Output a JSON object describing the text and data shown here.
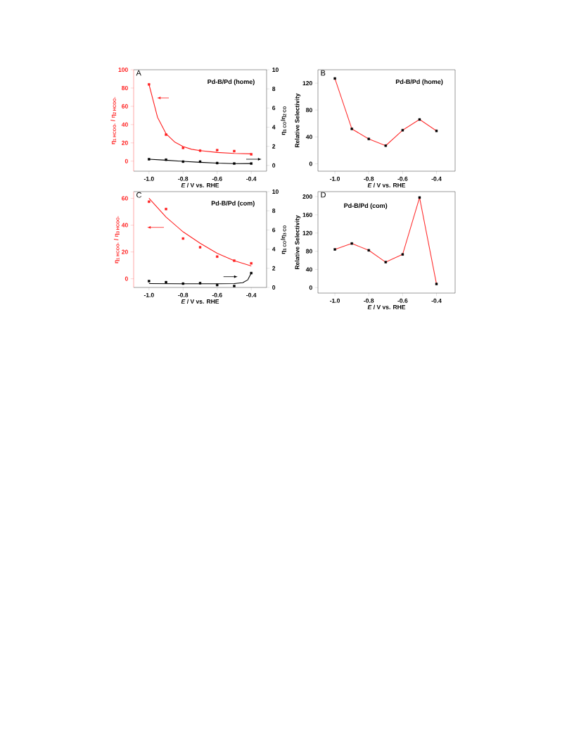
{
  "chart_data": [
    {
      "type": "scatter",
      "title": "Pd-B/Pd (home)",
      "annotations": [
        "A"
      ],
      "xlabel": "*E* / V vs. RHE",
      "ylabel": "η$_{1 HCOO-}$ / η$_{2 HCOO-}$",
      "y2label": "η$_{1 CO}$/η$_{2 CO}$",
      "x": [
        -1.0,
        -0.9,
        -0.8,
        -0.7,
        -0.6,
        -0.5,
        -0.4
      ],
      "xlim": [
        -1.09,
        -0.31
      ],
      "xticks": [
        {
          "value": -1.0,
          "label": "-1.0"
        },
        {
          "value": -0.8,
          "label": "-0.8"
        },
        {
          "value": -0.6,
          "label": "-0.6"
        },
        {
          "value": -0.4,
          "label": "-0.4"
        }
      ],
      "ylim": [
        -11,
        100
      ],
      "yticks": [
        0,
        20,
        40,
        60,
        80,
        100
      ],
      "y2lim": [
        -0.6,
        10
      ],
      "y2ticks": [
        0,
        2,
        4,
        6,
        8,
        10
      ],
      "marker": "square",
      "series": [
        {
          "type": "scatter",
          "color": "#ff1f1f",
          "values": [
            84,
            29,
            14.5,
            11.5,
            12,
            11,
            7.5
          ]
        },
        {
          "type": "line",
          "color": "#ff1f1f",
          "marker": "none",
          "x": [
            -1.0,
            -0.95,
            -0.9,
            -0.85,
            -0.8,
            -0.75,
            -0.7,
            -0.6,
            -0.5,
            -0.4
          ],
          "values": [
            84,
            48,
            30,
            21,
            16,
            13,
            11.5,
            9.5,
            8.5,
            8
          ]
        },
        {
          "type": "scatter",
          "axis": "y2",
          "color": "#000000",
          "values": [
            0.65,
            0.6,
            0.4,
            0.4,
            0.25,
            0.2,
            0.2
          ]
        },
        {
          "type": "line",
          "axis": "y2",
          "color": "#000000",
          "marker": "none",
          "x": [
            -1.0,
            -0.9,
            -0.8,
            -0.7,
            -0.6,
            -0.5,
            -0.4
          ],
          "values": [
            0.65,
            0.55,
            0.43,
            0.33,
            0.24,
            0.19,
            0.2
          ]
        }
      ]
    },
    {
      "type": "line",
      "title": "Pd-B/Pd (home)",
      "annotations": [
        "B"
      ],
      "xlabel": "*E* / V vs. RHE",
      "ylabel": "Relative Selectivity",
      "x": [
        -1.0,
        -0.9,
        -0.8,
        -0.7,
        -0.6,
        -0.5,
        -0.4
      ],
      "xlim": [
        -1.1,
        -0.29
      ],
      "xticks": [
        {
          "value": -1.0,
          "label": "-1.0"
        },
        {
          "value": -0.8,
          "label": "-0.8"
        },
        {
          "value": -0.6,
          "label": "-0.6"
        },
        {
          "value": -0.4,
          "label": "-0.4"
        }
      ],
      "ylim": [
        -11,
        140
      ],
      "yticks": [
        0,
        40,
        80,
        120
      ],
      "marker": "square",
      "series": [
        {
          "color": "#ff3030",
          "colors": [
            "#000000",
            "#000000",
            "#000000",
            "#000000",
            "#000000",
            "#000000",
            "#000000"
          ],
          "values": [
            127,
            52,
            37,
            27,
            50,
            66,
            49
          ]
        }
      ]
    },
    {
      "type": "scatter",
      "title": "Pd-B/Pd (com)",
      "annotations": [
        "C"
      ],
      "xlabel": "*E* / V vs. RHE",
      "ylabel": "η$_{1 HCOO-}$ / η$_{3 HCOO-}$",
      "y2label": "η$_{1 CO}$/η$_{3 CO}$",
      "x": [
        -1.0,
        -0.9,
        -0.8,
        -0.7,
        -0.6,
        -0.5,
        -0.4
      ],
      "xlim": [
        -1.09,
        -0.31
      ],
      "xticks": [
        {
          "value": -1.0,
          "label": "-1.0"
        },
        {
          "value": -0.8,
          "label": "-0.8"
        },
        {
          "value": -0.6,
          "label": "-0.6"
        },
        {
          "value": -0.4,
          "label": "-0.4"
        }
      ],
      "ylim": [
        -6.5,
        65
      ],
      "yticks": [
        0,
        20,
        40,
        60
      ],
      "y2lim": [
        0,
        10
      ],
      "y2ticks": [
        0,
        2,
        4,
        6,
        8,
        10
      ],
      "marker": "square",
      "series": [
        {
          "type": "scatter",
          "color": "#ff1f1f",
          "values": [
            57.5,
            52,
            30,
            23.5,
            16.5,
            13.5,
            11.5
          ]
        },
        {
          "type": "line",
          "color": "#ff1f1f",
          "marker": "none",
          "x": [
            -1.0,
            -0.9,
            -0.8,
            -0.7,
            -0.6,
            -0.5,
            -0.4
          ],
          "values": [
            60,
            46,
            35,
            26.5,
            19,
            13.5,
            9.5
          ]
        },
        {
          "type": "scatter",
          "axis": "y2",
          "color": "#000000",
          "values": [
            0.66,
            0.55,
            0.4,
            0.45,
            0.25,
            0.15,
            1.5
          ]
        },
        {
          "type": "line",
          "axis": "y2",
          "color": "#000000",
          "marker": "none",
          "x": [
            -1.0,
            -0.8,
            -0.6,
            -0.5,
            -0.45,
            -0.42,
            -0.4
          ],
          "values": [
            0.4,
            0.38,
            0.38,
            0.4,
            0.5,
            0.8,
            1.5
          ]
        }
      ]
    },
    {
      "type": "line",
      "title": "Pd-B/Pd (com)",
      "annotations": [
        "D"
      ],
      "xlabel": "*E* / V vs. RHE",
      "ylabel": "Relative Selectivity",
      "x": [
        -1.0,
        -0.9,
        -0.8,
        -0.7,
        -0.6,
        -0.5,
        -0.4
      ],
      "xlim": [
        -1.1,
        -0.29
      ],
      "xticks": [
        {
          "value": -1.0,
          "label": "-1.0"
        },
        {
          "value": -0.8,
          "label": "-0.8"
        },
        {
          "value": -0.6,
          "label": "-0.6"
        },
        {
          "value": -0.4,
          "label": "-0.4"
        }
      ],
      "ylim": [
        -12,
        211
      ],
      "yticks": [
        0,
        40,
        80,
        120,
        160,
        200
      ],
      "marker": "square",
      "series": [
        {
          "color": "#ff3030",
          "colors": [
            "#000000",
            "#000000",
            "#000000",
            "#000000",
            "#000000",
            "#000000",
            "#000000"
          ],
          "values": [
            84,
            97,
            82,
            56,
            73,
            198,
            8
          ]
        }
      ]
    }
  ]
}
